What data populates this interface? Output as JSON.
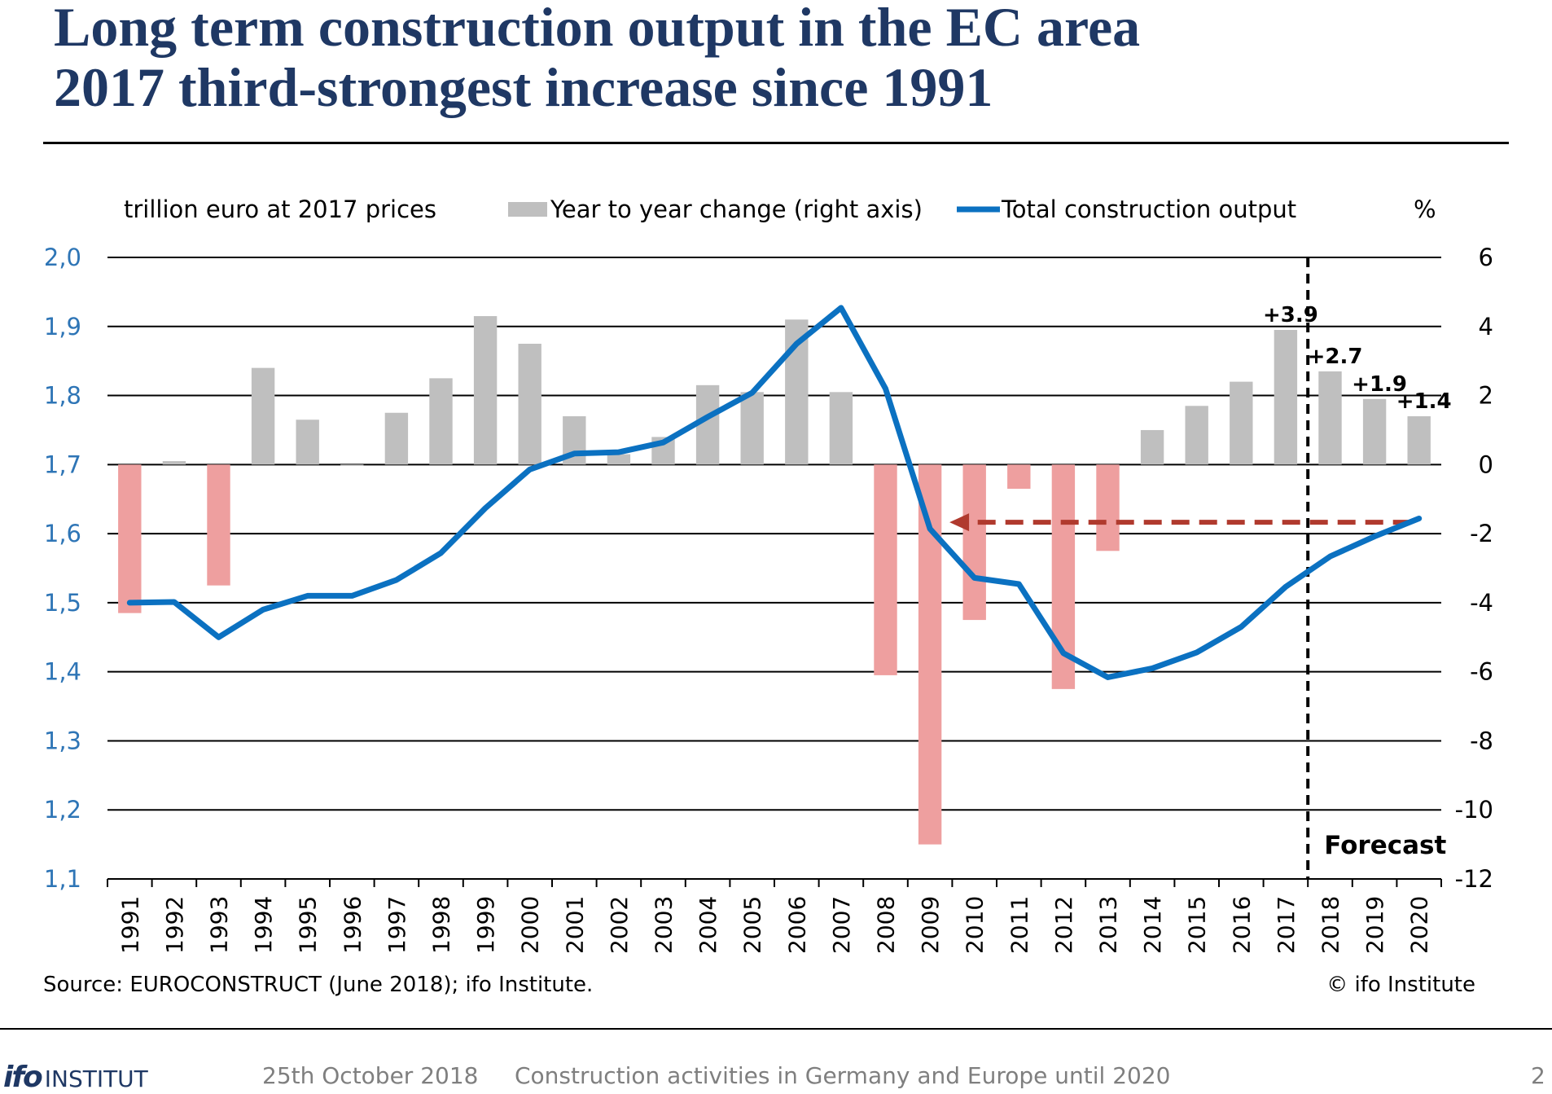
{
  "header": {
    "title": "Long term construction output in the EC area",
    "subtitle": "2017 third-strongest increase since 1991"
  },
  "footer": {
    "logo_bold": "ifo",
    "logo_text": "INSTITUT",
    "date": "25th October 2018",
    "topic": "Construction activities in Germany and Europe until 2020",
    "page_number": "2"
  },
  "colors": {
    "title": "#1f3864",
    "left_axis": "#2e75b6",
    "line": "#0b71c1",
    "bar_positive": "#bfbfbf",
    "bar_negative": "#ee9f9f",
    "arrow": "#b03a2e"
  },
  "chart_data": {
    "type": "bar+line",
    "unit_left": "trillion euro at 2017 prices",
    "unit_right": "%",
    "legend": {
      "bar": "Year to year change (right axis)",
      "line": "Total construction output"
    },
    "categories": [
      "1991",
      "1992",
      "1993",
      "1994",
      "1995",
      "1996",
      "1997",
      "1998",
      "1999",
      "2000",
      "2001",
      "2002",
      "2003",
      "2004",
      "2005",
      "2006",
      "2007",
      "2008",
      "2009",
      "2010",
      "2011",
      "2012",
      "2013",
      "2014",
      "2015",
      "2016",
      "2017",
      "2018",
      "2019",
      "2020"
    ],
    "series": [
      {
        "name": "Year to year change (right axis)",
        "type": "bar",
        "axis": "right",
        "values": [
          -4.3,
          0.1,
          -3.5,
          2.8,
          1.3,
          0.0,
          1.5,
          2.5,
          4.3,
          3.5,
          1.4,
          0.3,
          0.8,
          2.3,
          2.1,
          4.2,
          2.1,
          -6.1,
          -11.0,
          -4.5,
          -0.7,
          -6.5,
          -2.5,
          1.0,
          1.7,
          2.4,
          3.9,
          2.7,
          1.9,
          1.4
        ]
      },
      {
        "name": "Total construction output",
        "type": "line",
        "axis": "left",
        "values": [
          1.5,
          1.501,
          1.45,
          1.49,
          1.51,
          1.51,
          1.533,
          1.572,
          1.637,
          1.693,
          1.716,
          1.718,
          1.732,
          1.769,
          1.804,
          1.875,
          1.927,
          1.81,
          1.607,
          1.536,
          1.527,
          1.427,
          1.392,
          1.405,
          1.428,
          1.465,
          1.523,
          1.567,
          1.596,
          1.622
        ]
      }
    ],
    "bar_labels": [
      {
        "year": "2017",
        "text": "+3.9"
      },
      {
        "year": "2018",
        "text": "+2.7"
      },
      {
        "year": "2019",
        "text": "+1.9"
      },
      {
        "year": "2020",
        "text": "+1.4"
      }
    ],
    "left_axis": {
      "ylim": [
        1.1,
        2.0
      ],
      "ticks": [
        "1,1",
        "1,2",
        "1,3",
        "1,4",
        "1,5",
        "1,6",
        "1,7",
        "1,8",
        "1,9",
        "2,0"
      ]
    },
    "right_axis": {
      "ylim": [
        -12,
        6
      ],
      "ticks": [
        "-12",
        "-10",
        "-8",
        "-6",
        "-4",
        "-2",
        "0",
        "2",
        "4",
        "6"
      ]
    },
    "forecast_label": "Forecast",
    "forecast_start_year": "2018",
    "arrow": {
      "from_year": "2020",
      "to_year": "2009",
      "level": 1.62
    },
    "grid": true,
    "legend_position": "top",
    "source": "Source: EUROCONSTRUCT (June 2018); ifo Institute.",
    "copyright": "© ifo Institute"
  }
}
